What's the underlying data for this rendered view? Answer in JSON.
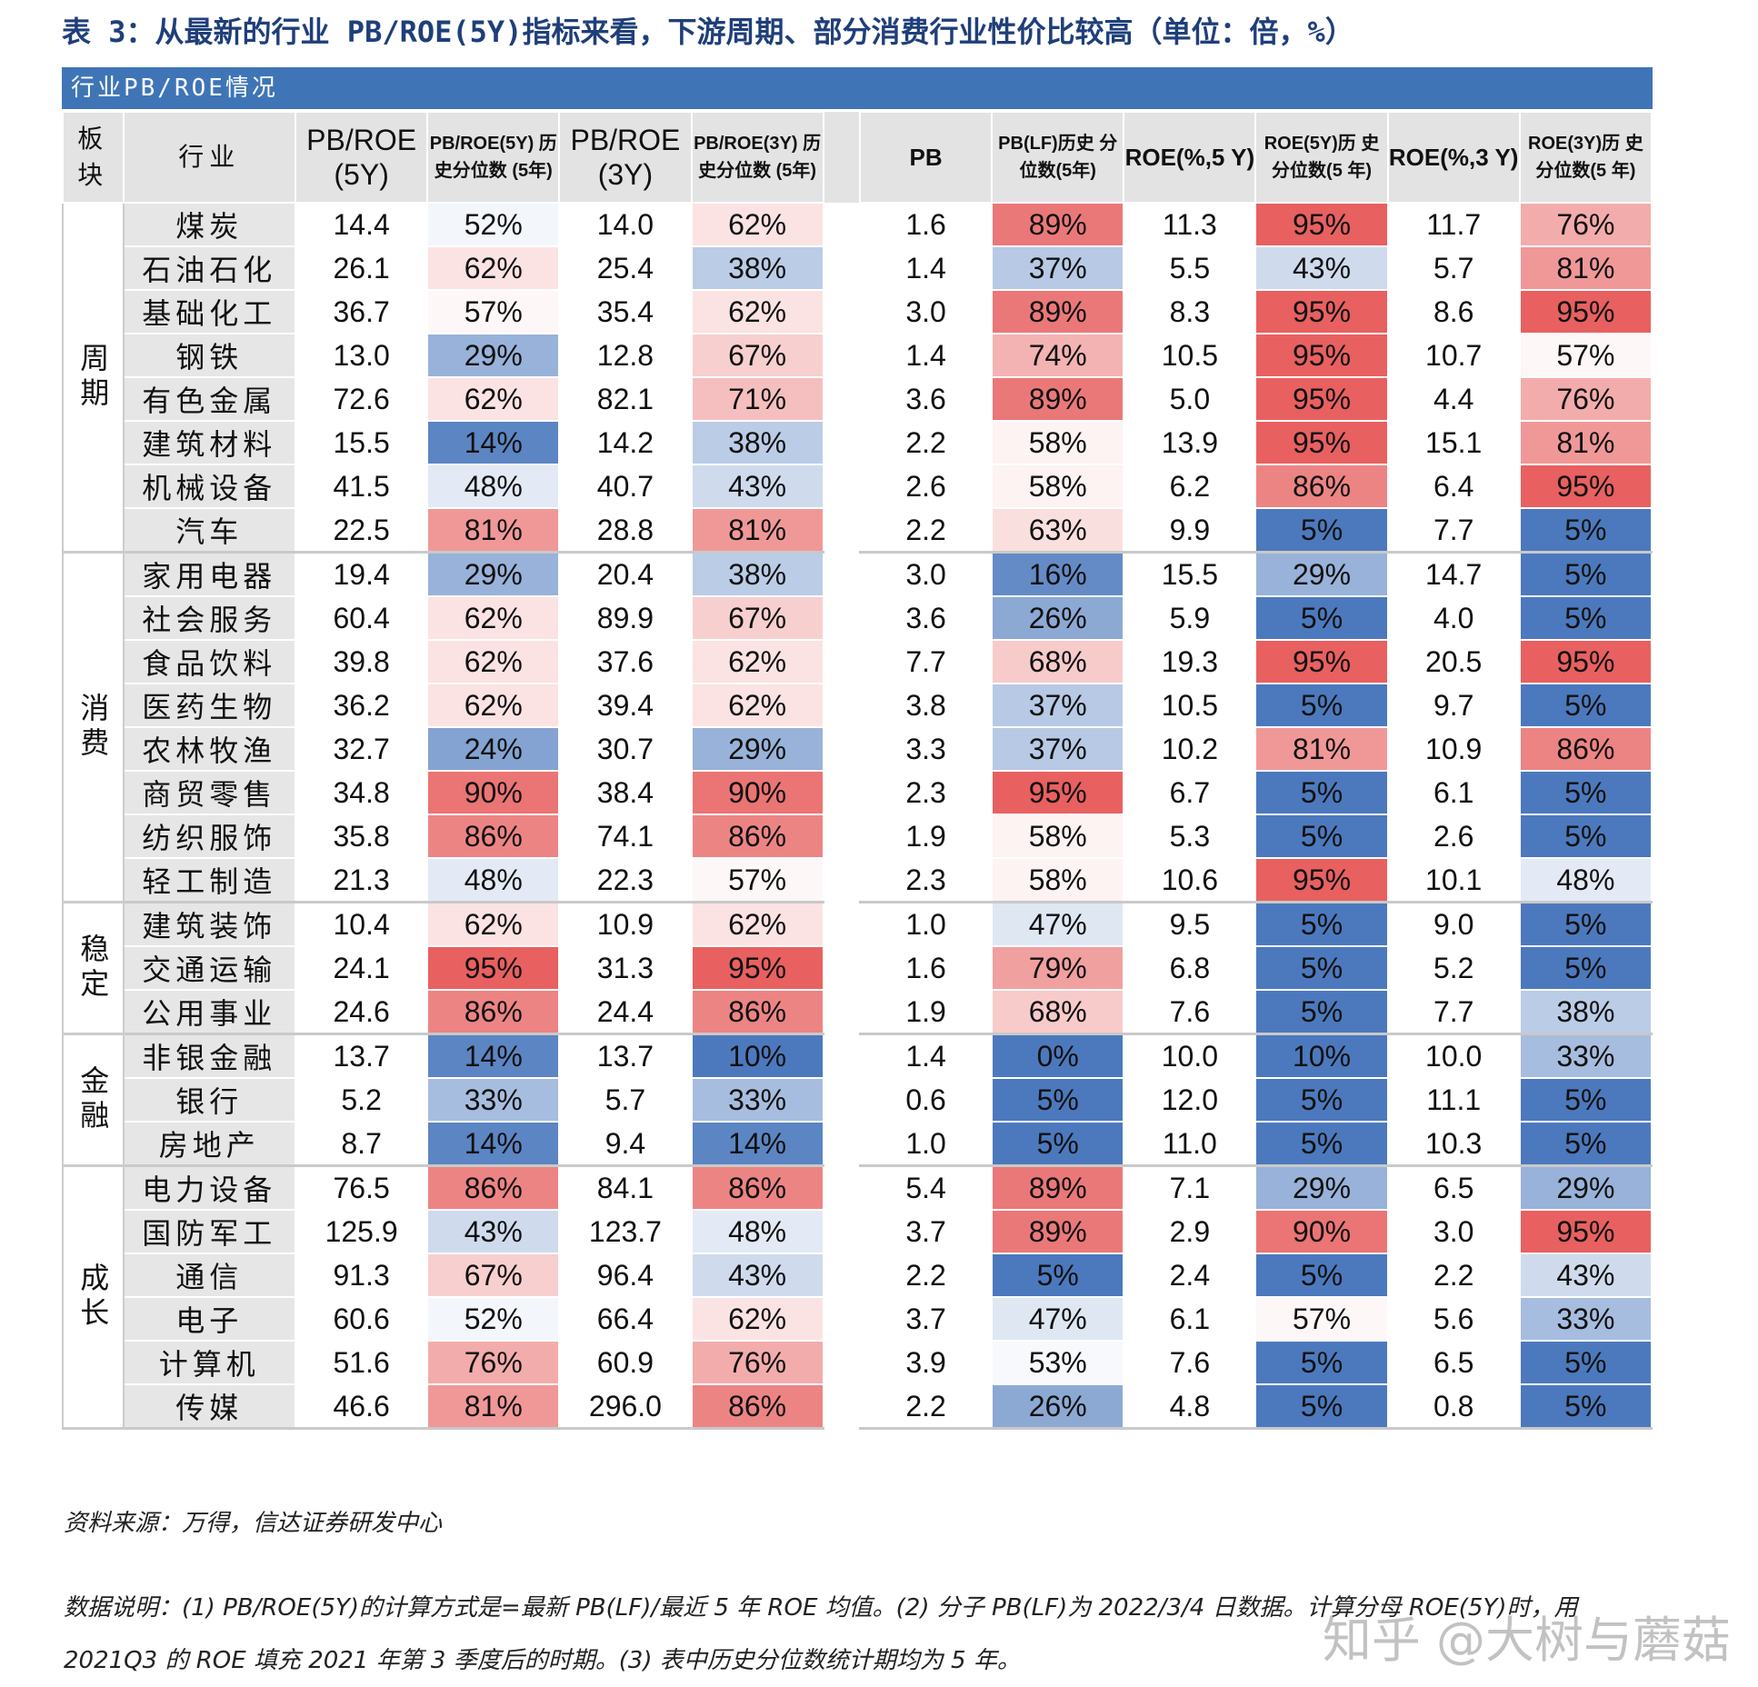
{
  "title": "表 3：从最新的行业 PB/ROE(5Y)指标来看，下游周期、部分消费行业性价比较高（单位：倍，%）",
  "banner": "行业PB/ROE情况",
  "headers": {
    "sector": "板块",
    "industry": "行业",
    "pbroe5": "PB/ROE (5Y)",
    "pbroe5_pct": "PB/ROE(5Y) 历史分位数 (5年)",
    "pbroe3": "PB/ROE (3Y)",
    "pbroe3_pct": "PB/ROE(3Y) 历史分位数 (5年)",
    "pb": "PB",
    "pb_pct": "PB(LF)历史 分位数(5年)",
    "roe5": "ROE(%,5 Y)",
    "roe5_pct": "ROE(5Y)历 史分位数(5 年)",
    "roe3": "ROE(%,3 Y)",
    "roe3_pct": "ROE(3Y)历 史分位数(5 年)"
  },
  "groups": [
    {
      "name": "周期",
      "rows": [
        {
          "industry": "煤炭",
          "pbroe5": "14.4",
          "p5": "52%",
          "pbroe3": "14.0",
          "p3": "62%",
          "pb": "1.6",
          "pbp": "89%",
          "roe5": "11.3",
          "r5": "95%",
          "roe3": "11.7",
          "r3": "76%"
        },
        {
          "industry": "石油石化",
          "pbroe5": "26.1",
          "p5": "62%",
          "pbroe3": "25.4",
          "p3": "38%",
          "pb": "1.4",
          "pbp": "37%",
          "roe5": "5.5",
          "r5": "43%",
          "roe3": "5.7",
          "r3": "81%"
        },
        {
          "industry": "基础化工",
          "pbroe5": "36.7",
          "p5": "57%",
          "pbroe3": "35.4",
          "p3": "62%",
          "pb": "3.0",
          "pbp": "89%",
          "roe5": "8.3",
          "r5": "95%",
          "roe3": "8.6",
          "r3": "95%"
        },
        {
          "industry": "钢铁",
          "pbroe5": "13.0",
          "p5": "29%",
          "pbroe3": "12.8",
          "p3": "67%",
          "pb": "1.4",
          "pbp": "74%",
          "roe5": "10.5",
          "r5": "95%",
          "roe3": "10.7",
          "r3": "57%"
        },
        {
          "industry": "有色金属",
          "pbroe5": "72.6",
          "p5": "62%",
          "pbroe3": "82.1",
          "p3": "71%",
          "pb": "3.6",
          "pbp": "89%",
          "roe5": "5.0",
          "r5": "95%",
          "roe3": "4.4",
          "r3": "76%"
        },
        {
          "industry": "建筑材料",
          "pbroe5": "15.5",
          "p5": "14%",
          "pbroe3": "14.2",
          "p3": "38%",
          "pb": "2.2",
          "pbp": "58%",
          "roe5": "13.9",
          "r5": "95%",
          "roe3": "15.1",
          "r3": "81%"
        },
        {
          "industry": "机械设备",
          "pbroe5": "41.5",
          "p5": "48%",
          "pbroe3": "40.7",
          "p3": "43%",
          "pb": "2.6",
          "pbp": "58%",
          "roe5": "6.2",
          "r5": "86%",
          "roe3": "6.4",
          "r3": "95%"
        },
        {
          "industry": "汽车",
          "pbroe5": "22.5",
          "p5": "81%",
          "pbroe3": "28.8",
          "p3": "81%",
          "pb": "2.2",
          "pbp": "63%",
          "roe5": "9.9",
          "r5": "5%",
          "roe3": "7.7",
          "r3": "5%"
        }
      ]
    },
    {
      "name": "消费",
      "rows": [
        {
          "industry": "家用电器",
          "pbroe5": "19.4",
          "p5": "29%",
          "pbroe3": "20.4",
          "p3": "38%",
          "pb": "3.0",
          "pbp": "16%",
          "roe5": "15.5",
          "r5": "29%",
          "roe3": "14.7",
          "r3": "5%"
        },
        {
          "industry": "社会服务",
          "pbroe5": "60.4",
          "p5": "62%",
          "pbroe3": "89.9",
          "p3": "67%",
          "pb": "3.6",
          "pbp": "26%",
          "roe5": "5.9",
          "r5": "5%",
          "roe3": "4.0",
          "r3": "5%"
        },
        {
          "industry": "食品饮料",
          "pbroe5": "39.8",
          "p5": "62%",
          "pbroe3": "37.6",
          "p3": "62%",
          "pb": "7.7",
          "pbp": "68%",
          "roe5": "19.3",
          "r5": "95%",
          "roe3": "20.5",
          "r3": "95%"
        },
        {
          "industry": "医药生物",
          "pbroe5": "36.2",
          "p5": "62%",
          "pbroe3": "39.4",
          "p3": "62%",
          "pb": "3.8",
          "pbp": "37%",
          "roe5": "10.5",
          "r5": "5%",
          "roe3": "9.7",
          "r3": "5%"
        },
        {
          "industry": "农林牧渔",
          "pbroe5": "32.7",
          "p5": "24%",
          "pbroe3": "30.7",
          "p3": "29%",
          "pb": "3.3",
          "pbp": "37%",
          "roe5": "10.2",
          "r5": "81%",
          "roe3": "10.9",
          "r3": "86%"
        },
        {
          "industry": "商贸零售",
          "pbroe5": "34.8",
          "p5": "90%",
          "pbroe3": "38.4",
          "p3": "90%",
          "pb": "2.3",
          "pbp": "95%",
          "roe5": "6.7",
          "r5": "5%",
          "roe3": "6.1",
          "r3": "5%"
        },
        {
          "industry": "纺织服饰",
          "pbroe5": "35.8",
          "p5": "86%",
          "pbroe3": "74.1",
          "p3": "86%",
          "pb": "1.9",
          "pbp": "58%",
          "roe5": "5.3",
          "r5": "5%",
          "roe3": "2.6",
          "r3": "5%"
        },
        {
          "industry": "轻工制造",
          "pbroe5": "21.3",
          "p5": "48%",
          "pbroe3": "22.3",
          "p3": "57%",
          "pb": "2.3",
          "pbp": "58%",
          "roe5": "10.6",
          "r5": "95%",
          "roe3": "10.1",
          "r3": "48%"
        }
      ]
    },
    {
      "name": "稳定",
      "rows": [
        {
          "industry": "建筑装饰",
          "pbroe5": "10.4",
          "p5": "62%",
          "pbroe3": "10.9",
          "p3": "62%",
          "pb": "1.0",
          "pbp": "47%",
          "roe5": "9.5",
          "r5": "5%",
          "roe3": "9.0",
          "r3": "5%"
        },
        {
          "industry": "交通运输",
          "pbroe5": "24.1",
          "p5": "95%",
          "pbroe3": "31.3",
          "p3": "95%",
          "pb": "1.6",
          "pbp": "79%",
          "roe5": "6.8",
          "r5": "5%",
          "roe3": "5.2",
          "r3": "5%"
        },
        {
          "industry": "公用事业",
          "pbroe5": "24.6",
          "p5": "86%",
          "pbroe3": "24.4",
          "p3": "86%",
          "pb": "1.9",
          "pbp": "68%",
          "roe5": "7.6",
          "r5": "5%",
          "roe3": "7.7",
          "r3": "38%"
        }
      ]
    },
    {
      "name": "金融",
      "rows": [
        {
          "industry": "非银金融",
          "pbroe5": "13.7",
          "p5": "14%",
          "pbroe3": "13.7",
          "p3": "10%",
          "pb": "1.4",
          "pbp": "0%",
          "roe5": "10.0",
          "r5": "10%",
          "roe3": "10.0",
          "r3": "33%"
        },
        {
          "industry": "银行",
          "pbroe5": "5.2",
          "p5": "33%",
          "pbroe3": "5.7",
          "p3": "33%",
          "pb": "0.6",
          "pbp": "5%",
          "roe5": "12.0",
          "r5": "5%",
          "roe3": "11.1",
          "r3": "5%"
        },
        {
          "industry": "房地产",
          "pbroe5": "8.7",
          "p5": "14%",
          "pbroe3": "9.4",
          "p3": "14%",
          "pb": "1.0",
          "pbp": "5%",
          "roe5": "11.0",
          "r5": "5%",
          "roe3": "10.3",
          "r3": "5%"
        }
      ]
    },
    {
      "name": "成长",
      "rows": [
        {
          "industry": "电力设备",
          "pbroe5": "76.5",
          "p5": "86%",
          "pbroe3": "84.1",
          "p3": "86%",
          "pb": "5.4",
          "pbp": "89%",
          "roe5": "7.1",
          "r5": "29%",
          "roe3": "6.5",
          "r3": "29%"
        },
        {
          "industry": "国防军工",
          "pbroe5": "125.9",
          "p5": "43%",
          "pbroe3": "123.7",
          "p3": "48%",
          "pb": "3.7",
          "pbp": "89%",
          "roe5": "2.9",
          "r5": "90%",
          "roe3": "3.0",
          "r3": "95%"
        },
        {
          "industry": "通信",
          "pbroe5": "91.3",
          "p5": "67%",
          "pbroe3": "96.4",
          "p3": "43%",
          "pb": "2.2",
          "pbp": "5%",
          "roe5": "2.4",
          "r5": "5%",
          "roe3": "2.2",
          "r3": "43%"
        },
        {
          "industry": "电子",
          "pbroe5": "60.6",
          "p5": "52%",
          "pbroe3": "66.4",
          "p3": "62%",
          "pb": "3.7",
          "pbp": "47%",
          "roe5": "6.1",
          "r5": "57%",
          "roe3": "5.6",
          "r3": "33%"
        },
        {
          "industry": "计算机",
          "pbroe5": "51.6",
          "p5": "76%",
          "pbroe3": "60.9",
          "p3": "76%",
          "pb": "3.9",
          "pbp": "53%",
          "roe5": "7.6",
          "r5": "5%",
          "roe3": "6.5",
          "r3": "5%"
        },
        {
          "industry": "传媒",
          "pbroe5": "46.6",
          "p5": "81%",
          "pbroe3": "296.0",
          "p3": "86%",
          "pb": "2.2",
          "pbp": "26%",
          "roe5": "4.8",
          "r5": "5%",
          "roe3": "0.8",
          "r3": "5%"
        }
      ]
    }
  ],
  "source": "资料来源：万得，信达证券研发中心",
  "note_line1": "数据说明：(1) PB/ROE(5Y)的计算方式是=最新 PB(LF)/最近 5 年 ROE 均值。(2) 分子 PB(LF)为 2022/3/4 日数据。计算分母 ROE(5Y)时，用",
  "note_line2": "2021Q3 的 ROE 填充 2021 年第 3 季度后的时期。(3) 表中历史分位数统计期均为 5 年。",
  "watermark": "知乎 @大树与蘑菇"
}
